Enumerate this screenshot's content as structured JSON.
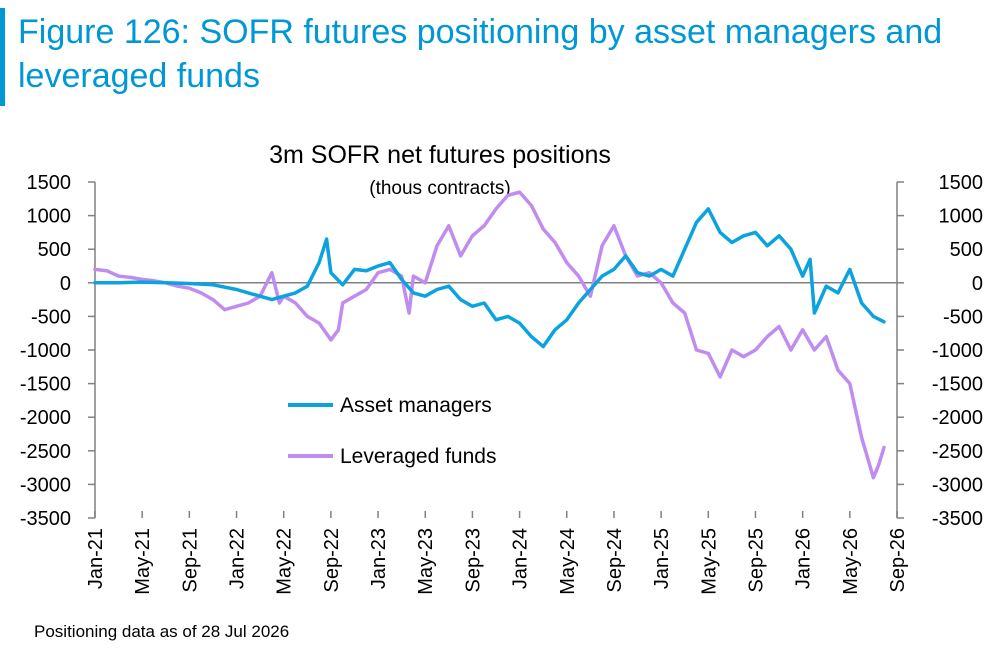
{
  "figure": {
    "title": "Figure 126: SOFR futures positioning by asset managers and leveraged funds",
    "footnote": "Positioning data as of 28 Jul 2026",
    "accent_color": "#0097d6"
  },
  "chart_data": {
    "type": "line",
    "title": "3m SOFR net futures positions",
    "subtitle": "(thous contracts)",
    "xlabel": "",
    "ylabel": "",
    "ylim": [
      -3500,
      1500
    ],
    "y_ticks": [
      1500,
      1000,
      500,
      0,
      -500,
      -1000,
      -1500,
      -2000,
      -2500,
      -3000,
      -3500
    ],
    "y_axis_both_sides": true,
    "x_range": [
      "2021-01",
      "2026-09"
    ],
    "x_ticks": [
      "Jan-21",
      "May-21",
      "Sep-21",
      "Jan-22",
      "May-22",
      "Sep-22",
      "Jan-23",
      "May-23",
      "Sep-23",
      "Jan-24",
      "May-24",
      "Sep-24",
      "Jan-25",
      "May-25",
      "Sep-25",
      "Jan-26",
      "May-26",
      "Sep-26"
    ],
    "grid": false,
    "legend_position": "center-left",
    "series": [
      {
        "name": "Asset managers",
        "color": "#0aa3df",
        "x": [
          "2021-01",
          "2021-03",
          "2021-05",
          "2021-07",
          "2021-09",
          "2021-11",
          "2022-01",
          "2022-02",
          "2022-03",
          "2022-04",
          "2022-05",
          "2022-06",
          "2022-07",
          "2022-08",
          "2022-08-20",
          "2022-09",
          "2022-10",
          "2022-11",
          "2022-12",
          "2023-01",
          "2023-02",
          "2023-03",
          "2023-04",
          "2023-05",
          "2023-06",
          "2023-07",
          "2023-08",
          "2023-09",
          "2023-10",
          "2023-11",
          "2023-12",
          "2024-01",
          "2024-02",
          "2024-03",
          "2024-04",
          "2024-05",
          "2024-06",
          "2024-07",
          "2024-08",
          "2024-09",
          "2024-10",
          "2024-11",
          "2024-12",
          "2025-01",
          "2025-02",
          "2025-03",
          "2025-04",
          "2025-05",
          "2025-06",
          "2025-07",
          "2025-08",
          "2025-09",
          "2025-10",
          "2025-11",
          "2025-12",
          "2026-01",
          "2026-01-20",
          "2026-02",
          "2026-03",
          "2026-04",
          "2026-05",
          "2026-06",
          "2026-07",
          "2026-07-28"
        ],
        "y": [
          0,
          0,
          10,
          0,
          -10,
          -30,
          -100,
          -150,
          -200,
          -250,
          -200,
          -150,
          -50,
          300,
          650,
          150,
          -30,
          200,
          180,
          250,
          300,
          50,
          -150,
          -200,
          -100,
          -50,
          -250,
          -350,
          -300,
          -550,
          -500,
          -600,
          -800,
          -950,
          -700,
          -550,
          -300,
          -100,
          100,
          200,
          400,
          150,
          100,
          200,
          100,
          500,
          900,
          1100,
          750,
          600,
          700,
          750,
          550,
          700,
          500,
          100,
          350,
          -450,
          -50,
          -150,
          200,
          -300,
          -500,
          -580
        ]
      },
      {
        "name": "Leveraged funds",
        "color": "#c08cf0",
        "x": [
          "2021-01",
          "2021-02",
          "2021-03",
          "2021-04",
          "2021-05",
          "2021-06",
          "2021-07",
          "2021-08",
          "2021-09",
          "2021-10",
          "2021-11",
          "2021-12",
          "2022-01",
          "2022-02",
          "2022-03",
          "2022-04",
          "2022-04-20",
          "2022-05",
          "2022-06",
          "2022-07",
          "2022-08",
          "2022-09",
          "2022-09-20",
          "2022-10",
          "2022-11",
          "2022-12",
          "2023-01",
          "2023-02",
          "2023-03",
          "2023-03-20",
          "2023-04",
          "2023-05",
          "2023-06",
          "2023-07",
          "2023-08",
          "2023-09",
          "2023-10",
          "2023-11",
          "2023-12",
          "2024-01",
          "2024-02",
          "2024-03",
          "2024-04",
          "2024-05",
          "2024-06",
          "2024-07",
          "2024-08",
          "2024-09",
          "2024-10",
          "2024-11",
          "2024-12",
          "2025-01",
          "2025-02",
          "2025-03",
          "2025-04",
          "2025-05",
          "2025-06",
          "2025-07",
          "2025-08",
          "2025-09",
          "2025-10",
          "2025-11",
          "2025-12",
          "2026-01",
          "2026-02",
          "2026-03",
          "2026-04",
          "2026-05",
          "2026-06",
          "2026-07",
          "2026-07-15",
          "2026-07-28"
        ],
        "y": [
          200,
          180,
          100,
          80,
          50,
          30,
          0,
          -50,
          -80,
          -150,
          -250,
          -400,
          -350,
          -300,
          -200,
          150,
          -300,
          -200,
          -300,
          -500,
          -600,
          -850,
          -700,
          -300,
          -200,
          -100,
          150,
          200,
          100,
          -450,
          100,
          0,
          550,
          850,
          400,
          700,
          850,
          1100,
          1300,
          1350,
          1150,
          800,
          600,
          300,
          100,
          -200,
          550,
          850,
          400,
          100,
          150,
          0,
          -300,
          -450,
          -1000,
          -1050,
          -1400,
          -1000,
          -1100,
          -1000,
          -800,
          -650,
          -1000,
          -700,
          -1000,
          -800,
          -1300,
          -1500,
          -2300,
          -2900,
          -2700,
          -2450
        ]
      }
    ]
  }
}
